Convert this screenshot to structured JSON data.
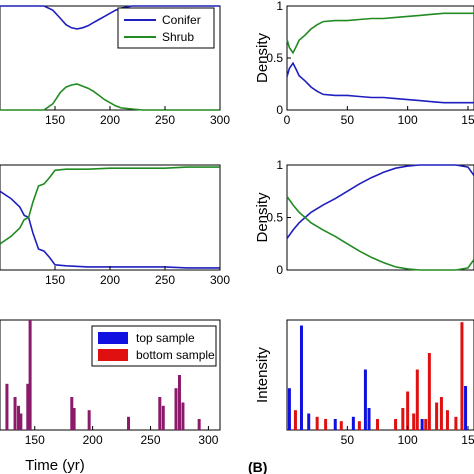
{
  "figure": {
    "panel_b_label": "(B)",
    "colors": {
      "conifer": "#1f1fbf",
      "shrub": "#228b22",
      "top_sample": "#1010e0",
      "bottom_sample": "#e01010",
      "overlap": "#8b1a6b"
    }
  },
  "chart_data": [
    {
      "id": "a1",
      "type": "line",
      "xlim": [
        100,
        300
      ],
      "xticks": [
        "150",
        "200",
        "250",
        "300"
      ],
      "legend": {
        "entries": [
          "Conifer",
          "Shrub"
        ],
        "placement": "top-right"
      },
      "series": [
        {
          "name": "Conifer",
          "color": "#1f1fbf",
          "x": [
            100,
            140,
            148,
            155,
            160,
            165,
            170,
            175,
            180,
            185,
            190,
            195,
            200,
            205,
            210,
            220,
            230,
            300
          ],
          "y": [
            1.0,
            1.0,
            0.96,
            0.88,
            0.82,
            0.79,
            0.78,
            0.79,
            0.81,
            0.84,
            0.87,
            0.9,
            0.93,
            0.96,
            0.98,
            1.0,
            1.0,
            1.0
          ]
        },
        {
          "name": "Shrub",
          "color": "#228b22",
          "x": [
            100,
            140,
            148,
            155,
            160,
            165,
            170,
            175,
            180,
            185,
            190,
            195,
            200,
            205,
            210,
            220,
            230,
            300
          ],
          "y": [
            0.0,
            0.0,
            0.06,
            0.17,
            0.22,
            0.24,
            0.25,
            0.23,
            0.21,
            0.18,
            0.14,
            0.1,
            0.07,
            0.04,
            0.02,
            0.01,
            0.0,
            0.0
          ]
        }
      ]
    },
    {
      "id": "b1",
      "type": "line",
      "xlim": [
        0,
        155
      ],
      "ylim": [
        0,
        1
      ],
      "ylabel": "Density",
      "xticks": [
        "0",
        "50",
        "100",
        "15"
      ],
      "yticks": [
        "0",
        "0.5",
        "1"
      ],
      "series": [
        {
          "color": "#1f1fbf",
          "x": [
            0,
            2,
            5,
            8,
            10,
            15,
            20,
            25,
            30,
            40,
            50,
            60,
            70,
            80,
            90,
            100,
            110,
            120,
            130,
            140,
            155
          ],
          "y": [
            0.32,
            0.4,
            0.45,
            0.38,
            0.33,
            0.28,
            0.22,
            0.18,
            0.15,
            0.14,
            0.14,
            0.13,
            0.12,
            0.12,
            0.11,
            0.1,
            0.09,
            0.08,
            0.07,
            0.07,
            0.07
          ]
        },
        {
          "color": "#228b22",
          "x": [
            0,
            2,
            5,
            8,
            10,
            15,
            20,
            25,
            30,
            40,
            50,
            60,
            70,
            80,
            90,
            100,
            110,
            120,
            130,
            140,
            155
          ],
          "y": [
            0.68,
            0.6,
            0.55,
            0.62,
            0.67,
            0.72,
            0.78,
            0.82,
            0.85,
            0.86,
            0.86,
            0.87,
            0.88,
            0.88,
            0.89,
            0.9,
            0.91,
            0.92,
            0.93,
            0.93,
            0.93
          ]
        }
      ]
    },
    {
      "id": "a2",
      "type": "line",
      "xlim": [
        100,
        300
      ],
      "xticks": [
        "150",
        "200",
        "250",
        "300"
      ],
      "series": [
        {
          "color": "#1f1fbf",
          "x": [
            100,
            110,
            118,
            122,
            126,
            130,
            135,
            140,
            145,
            150,
            160,
            180,
            200,
            220,
            250,
            270,
            285,
            300
          ],
          "y": [
            0.75,
            0.68,
            0.6,
            0.52,
            0.5,
            0.35,
            0.2,
            0.18,
            0.12,
            0.05,
            0.04,
            0.03,
            0.03,
            0.03,
            0.03,
            0.02,
            0.02,
            0.02
          ]
        },
        {
          "color": "#228b22",
          "x": [
            100,
            110,
            118,
            122,
            126,
            130,
            135,
            140,
            145,
            150,
            160,
            180,
            200,
            220,
            250,
            270,
            285,
            300
          ],
          "y": [
            0.25,
            0.32,
            0.4,
            0.48,
            0.5,
            0.65,
            0.8,
            0.82,
            0.88,
            0.95,
            0.96,
            0.96,
            0.97,
            0.97,
            0.97,
            0.98,
            0.98,
            0.98
          ]
        }
      ]
    },
    {
      "id": "b2",
      "type": "line",
      "xlim": [
        0,
        155
      ],
      "ylim": [
        0,
        1
      ],
      "ylabel": "Density",
      "yticks": [
        "0",
        "0.5",
        "1"
      ],
      "series": [
        {
          "color": "#1f1fbf",
          "x": [
            0,
            5,
            10,
            15,
            20,
            30,
            40,
            50,
            60,
            70,
            80,
            90,
            100,
            110,
            120,
            130,
            140,
            150,
            155
          ],
          "y": [
            0.3,
            0.38,
            0.45,
            0.5,
            0.55,
            0.62,
            0.68,
            0.75,
            0.82,
            0.88,
            0.93,
            0.97,
            0.99,
            1.0,
            1.0,
            1.0,
            1.0,
            0.98,
            0.9
          ]
        },
        {
          "color": "#228b22",
          "x": [
            0,
            5,
            10,
            15,
            20,
            30,
            40,
            50,
            60,
            70,
            80,
            90,
            100,
            110,
            120,
            130,
            140,
            150,
            155
          ],
          "y": [
            0.7,
            0.62,
            0.55,
            0.5,
            0.45,
            0.38,
            0.32,
            0.25,
            0.18,
            0.12,
            0.07,
            0.03,
            0.01,
            0.0,
            0.0,
            0.0,
            0.0,
            0.02,
            0.1
          ]
        }
      ]
    },
    {
      "id": "a3",
      "type": "bar",
      "xlim": [
        120,
        310
      ],
      "ylim": [
        0,
        1
      ],
      "xlabel": "Time (yr)",
      "xticks": [
        "150",
        "200",
        "250",
        "300"
      ],
      "legend": {
        "entries": [
          "top sample",
          "bottom sample"
        ],
        "placement": "top-right"
      },
      "bars_overlap": [
        {
          "x": 126,
          "y": 0.42
        },
        {
          "x": 133,
          "y": 0.3
        },
        {
          "x": 136,
          "y": 0.22
        },
        {
          "x": 138,
          "y": 0.15
        },
        {
          "x": 144,
          "y": 0.42
        },
        {
          "x": 146,
          "y": 1.0
        },
        {
          "x": 182,
          "y": 0.3
        },
        {
          "x": 184,
          "y": 0.2
        },
        {
          "x": 197,
          "y": 0.18
        },
        {
          "x": 231,
          "y": 0.12
        },
        {
          "x": 258,
          "y": 0.3
        },
        {
          "x": 261,
          "y": 0.22
        },
        {
          "x": 272,
          "y": 0.38
        },
        {
          "x": 275,
          "y": 0.5
        },
        {
          "x": 278,
          "y": 0.25
        },
        {
          "x": 292,
          "y": 0.1
        }
      ]
    },
    {
      "id": "b3",
      "type": "bar",
      "xlim": [
        0,
        155
      ],
      "ylim": [
        0,
        1
      ],
      "ylabel": "Intensity",
      "xticks": [
        "50",
        "100",
        "15"
      ],
      "bars_top": [
        {
          "x": 2,
          "y": 0.38
        },
        {
          "x": 12,
          "y": 0.95
        },
        {
          "x": 18,
          "y": 0.15
        },
        {
          "x": 40,
          "y": 0.1
        },
        {
          "x": 55,
          "y": 0.12
        },
        {
          "x": 65,
          "y": 0.55
        },
        {
          "x": 68,
          "y": 0.2
        },
        {
          "x": 112,
          "y": 0.1
        },
        {
          "x": 148,
          "y": 0.4
        }
      ],
      "bars_bottom": [
        {
          "x": 7,
          "y": 0.18
        },
        {
          "x": 25,
          "y": 0.12
        },
        {
          "x": 32,
          "y": 0.1
        },
        {
          "x": 45,
          "y": 0.08
        },
        {
          "x": 60,
          "y": 0.08
        },
        {
          "x": 75,
          "y": 0.1
        },
        {
          "x": 90,
          "y": 0.1
        },
        {
          "x": 96,
          "y": 0.2
        },
        {
          "x": 100,
          "y": 0.35
        },
        {
          "x": 105,
          "y": 0.15
        },
        {
          "x": 108,
          "y": 0.55
        },
        {
          "x": 115,
          "y": 0.1
        },
        {
          "x": 118,
          "y": 0.7
        },
        {
          "x": 124,
          "y": 0.25
        },
        {
          "x": 128,
          "y": 0.3
        },
        {
          "x": 133,
          "y": 0.18
        },
        {
          "x": 140,
          "y": 0.12
        },
        {
          "x": 145,
          "y": 0.98
        }
      ]
    }
  ]
}
